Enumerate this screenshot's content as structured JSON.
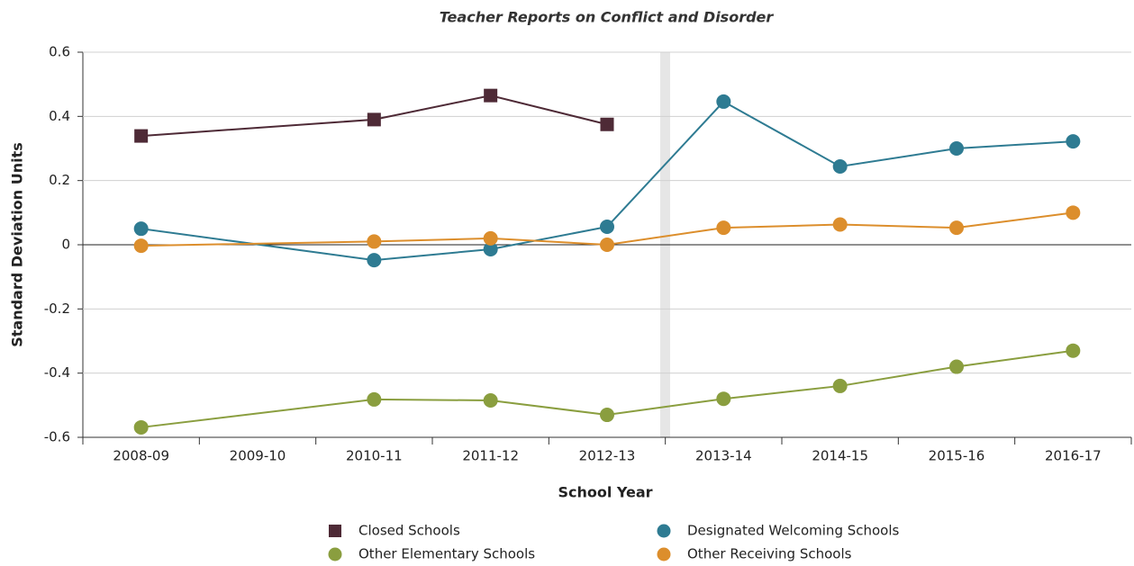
{
  "chart_data": {
    "type": "line",
    "title": "Teacher Reports on Conflict and Disorder",
    "x_label": "School Year",
    "y_label": "Standard Deviation Units",
    "categories": [
      "2008-09",
      "2009-10",
      "2010-11",
      "2011-12",
      "2012-13",
      "2013-14",
      "2014-15",
      "2015-16",
      "2016-17"
    ],
    "ylim": [
      -0.6,
      0.6
    ],
    "yticks": [
      -0.6,
      -0.4,
      -0.2,
      0,
      0.2,
      0.4,
      0.6
    ],
    "grid": true,
    "legend": "bottom",
    "series": [
      {
        "name": "Closed Schools",
        "color": "#4e2a36",
        "marker": "square",
        "x": [
          "2008-09",
          "2010-11",
          "2011-12",
          "2012-13"
        ],
        "values": [
          0.339,
          0.39,
          0.465,
          0.375
        ]
      },
      {
        "name": "Designated  Welcoming Schools",
        "color": "#2e7b92",
        "marker": "circle",
        "x": [
          "2008-09",
          "2010-11",
          "2011-12",
          "2012-13",
          "2013-14",
          "2014-15",
          "2015-16",
          "2016-17"
        ],
        "values": [
          0.05,
          -0.048,
          -0.014,
          0.056,
          0.446,
          0.244,
          0.3,
          0.322
        ]
      },
      {
        "name": "Other Elementary Schools",
        "color": "#8a9e3f",
        "marker": "circle",
        "x": [
          "2008-09",
          "2010-11",
          "2011-12",
          "2012-13",
          "2013-14",
          "2014-15",
          "2015-16",
          "2016-17"
        ],
        "values": [
          -0.569,
          -0.482,
          -0.485,
          -0.53,
          -0.48,
          -0.44,
          -0.38,
          -0.33
        ]
      },
      {
        "name": "Other Receiving Schools",
        "color": "#dc8e2c",
        "marker": "circle",
        "x": [
          "2008-09",
          "2010-11",
          "2011-12",
          "2012-13",
          "2013-14",
          "2014-15",
          "2015-16",
          "2016-17"
        ],
        "values": [
          -0.003,
          0.01,
          0.02,
          0,
          0.053,
          0.063,
          0.053,
          0.1
        ]
      }
    ]
  }
}
